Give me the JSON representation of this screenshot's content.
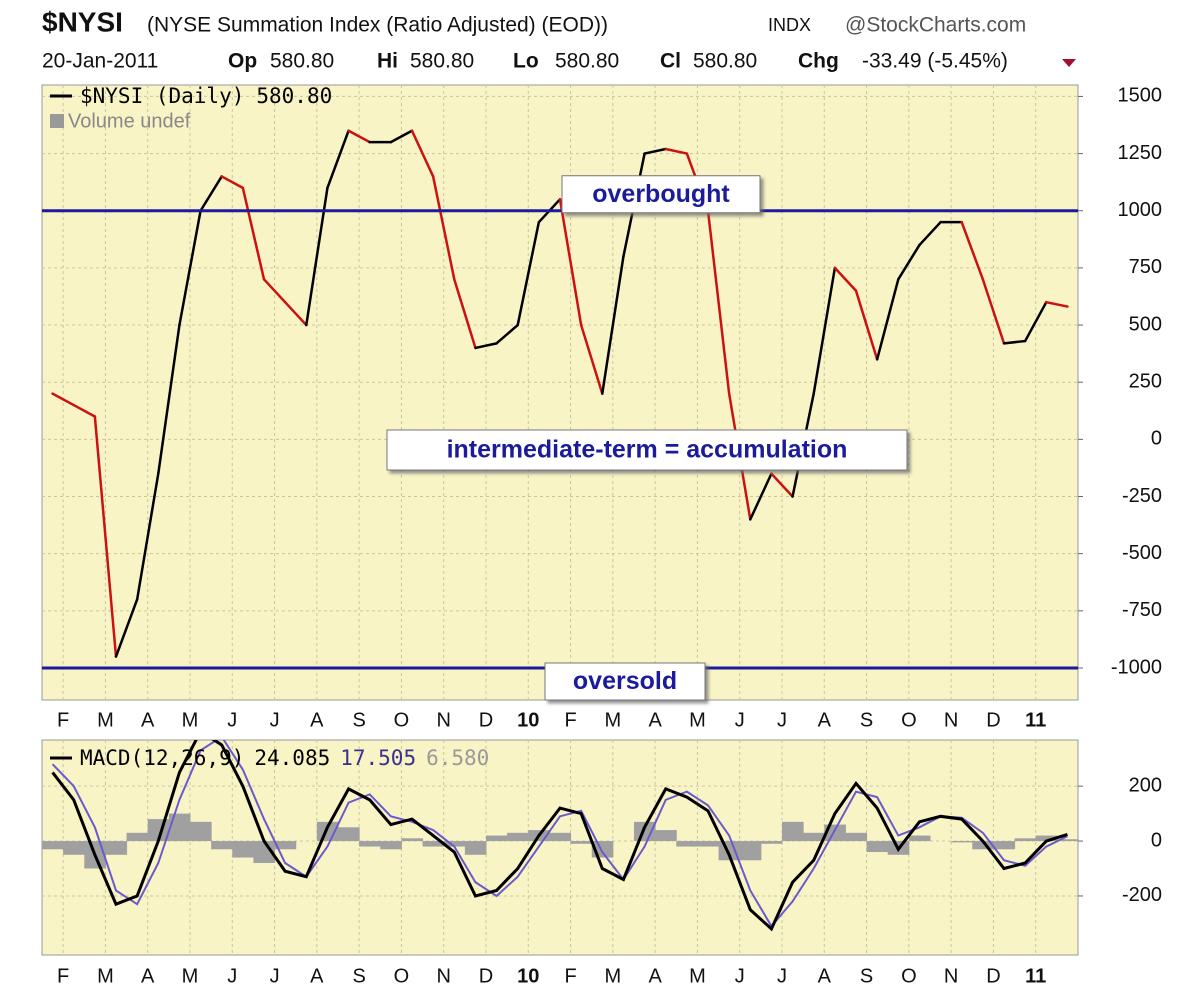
{
  "header": {
    "symbol": "$NYSI",
    "description": "(NYSE Summation Index (Ratio Adjusted) (EOD))",
    "exchange": "INDX",
    "source": "@StockCharts.com",
    "date": "20-Jan-2011",
    "op_label": "Op",
    "op": "580.80",
    "hi_label": "Hi",
    "hi": "580.80",
    "lo_label": "Lo",
    "lo": "580.80",
    "cl_label": "Cl",
    "cl": "580.80",
    "chg_label": "Chg",
    "chg": "-33.49 (-5.45%)"
  },
  "chart_data": [
    {
      "type": "line",
      "legend_label": "$NYSI (Daily)",
      "legend_value": "580.80",
      "volume_label": "Volume undef",
      "categories": [
        null,
        "F",
        null,
        "M",
        null,
        "A",
        null,
        "M",
        null,
        "J",
        null,
        "J",
        null,
        "A",
        null,
        "S",
        null,
        "O",
        null,
        "N",
        null,
        "D",
        null,
        "10",
        null,
        "F",
        null,
        "M",
        null,
        "A",
        null,
        "M",
        null,
        "J",
        null,
        "J",
        null,
        "A",
        null,
        "S",
        null,
        "O",
        null,
        "N",
        null,
        "D",
        null,
        "11",
        null
      ],
      "series": [
        {
          "name": "$NYSI",
          "style": "updown",
          "rising_color": "#000000",
          "falling_color": "#cc1111",
          "values": [
            200,
            150,
            100,
            -950,
            -700,
            -150,
            500,
            1000,
            1150,
            1100,
            700,
            600,
            500,
            1100,
            1350,
            1300,
            1300,
            1350,
            1150,
            700,
            400,
            420,
            500,
            950,
            1050,
            500,
            200,
            800,
            1250,
            1270,
            1250,
            1000,
            200,
            -350,
            -150,
            -250,
            200,
            750,
            650,
            350,
            700,
            850,
            950,
            950,
            700,
            420,
            430,
            600,
            580.8
          ]
        }
      ],
      "reference_lines": [
        {
          "value": 1000,
          "label": "overbought",
          "color": "#1b1b9b"
        },
        {
          "value": -1000,
          "label": "oversold",
          "color": "#1b1b9b"
        }
      ],
      "annotation": "intermediate-term = accumulation",
      "ylim": [
        -1140,
        1550
      ],
      "yticks": [
        -1000,
        -750,
        -500,
        -250,
        0,
        250,
        500,
        750,
        1000,
        1250,
        1500
      ],
      "grid": true
    },
    {
      "type": "line",
      "legend_label": "MACD(12,26,9)",
      "last_labels": [
        "24.085",
        "17.505",
        "6.580"
      ],
      "categories": [
        null,
        "F",
        null,
        "M",
        null,
        "A",
        null,
        "M",
        null,
        "J",
        null,
        "J",
        null,
        "A",
        null,
        "S",
        null,
        "O",
        null,
        "N",
        null,
        "D",
        null,
        "10",
        null,
        "F",
        null,
        "M",
        null,
        "A",
        null,
        "M",
        null,
        "J",
        null,
        "J",
        null,
        "A",
        null,
        "S",
        null,
        "O",
        null,
        "N",
        null,
        "D",
        null,
        "11",
        null
      ],
      "series": [
        {
          "name": "Histogram",
          "style": "histogram",
          "color": "#a0a0a0",
          "values": [
            -30,
            -50,
            -100,
            -50,
            30,
            80,
            100,
            70,
            -30,
            -60,
            -80,
            -30,
            0,
            70,
            50,
            -20,
            -30,
            10,
            -20,
            -20,
            -50,
            20,
            30,
            40,
            30,
            -10,
            -60,
            0,
            70,
            40,
            -20,
            -20,
            -70,
            -70,
            -10,
            70,
            30,
            60,
            30,
            -40,
            -50,
            20,
            0,
            -5,
            -30,
            -30,
            10,
            20,
            6.58
          ]
        },
        {
          "name": "Signal",
          "style": "line",
          "color": "#6a5acd",
          "values": [
            280,
            200,
            50,
            -180,
            -230,
            -80,
            150,
            330,
            380,
            260,
            80,
            -80,
            -130,
            -20,
            140,
            170,
            90,
            70,
            40,
            -20,
            -150,
            -200,
            -130,
            -20,
            90,
            110,
            -40,
            -140,
            -20,
            150,
            180,
            130,
            20,
            -180,
            -310,
            -220,
            -100,
            40,
            180,
            160,
            20,
            50,
            90,
            85,
            30,
            -70,
            -90,
            -20,
            17.505
          ]
        },
        {
          "name": "MACD",
          "style": "line",
          "color": "#000000",
          "values": [
            250,
            150,
            -50,
            -230,
            -200,
            0,
            250,
            400,
            350,
            200,
            0,
            -110,
            -130,
            50,
            190,
            150,
            60,
            80,
            20,
            -40,
            -200,
            -180,
            -100,
            20,
            120,
            100,
            -100,
            -140,
            50,
            190,
            160,
            110,
            -50,
            -250,
            -320,
            -150,
            -70,
            100,
            210,
            120,
            -30,
            70,
            90,
            80,
            0,
            -100,
            -80,
            0,
            24.085
          ]
        }
      ],
      "ylim": [
        -415,
        368
      ],
      "yticks": [
        -200,
        0,
        200
      ],
      "grid": true
    }
  ]
}
